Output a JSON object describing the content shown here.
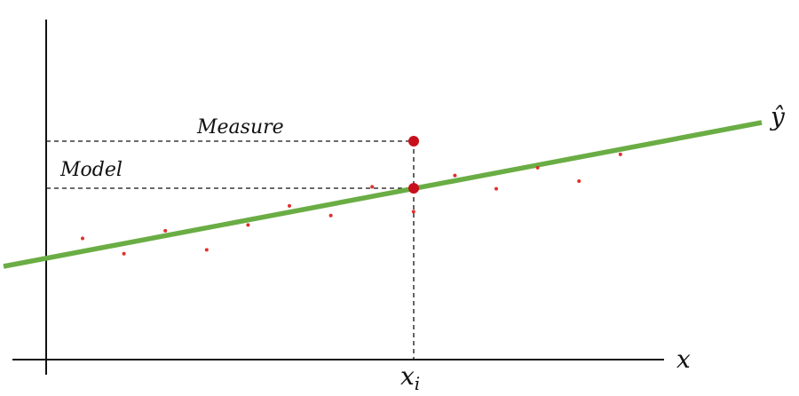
{
  "labels": {
    "measure": "Measure",
    "model": "Model",
    "y_hat": "ŷ",
    "x_axis": "x",
    "x_i_base": "x",
    "x_i_sub": "i"
  },
  "colors": {
    "axis": "#111111",
    "regression_line": "#6aad44",
    "points": "#e0302a",
    "highlight_points": "#c8101c",
    "guides": "#111111"
  },
  "chart_data": {
    "type": "scatter",
    "x": [
      1,
      2,
      3,
      4,
      5,
      6,
      7,
      8,
      9,
      10,
      11,
      12,
      13,
      14
    ],
    "y": [
      3.2,
      2.4,
      3.6,
      2.6,
      3.9,
      4.9,
      4.4,
      5.9,
      4.6,
      6.5,
      5.8,
      6.9,
      6.2,
      7.6
    ]
  }
}
